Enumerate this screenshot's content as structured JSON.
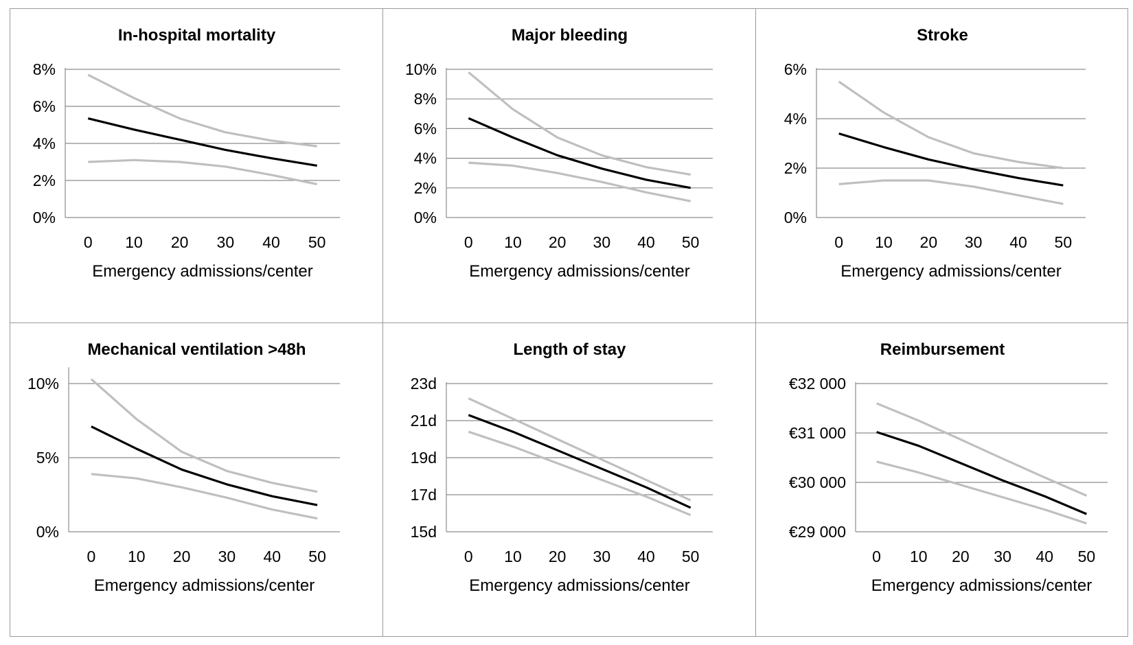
{
  "chart_data": [
    {
      "type": "line",
      "title": "In-hospital mortality",
      "xlabel": "Emergency admissions/center",
      "ylabel": "",
      "categories": [
        0,
        10,
        20,
        30,
        40,
        50
      ],
      "ylim": [
        0,
        8
      ],
      "yticks": [
        "0%",
        "2%",
        "4%",
        "6%",
        "8%"
      ],
      "ytick_values": [
        0,
        2,
        4,
        6,
        8
      ],
      "grid": true,
      "series": [
        {
          "role": "upper",
          "color": "#bfbfbf",
          "values": [
            7.7,
            6.45,
            5.35,
            4.6,
            4.15,
            3.85
          ]
        },
        {
          "role": "estimate",
          "color": "#000000",
          "values": [
            5.35,
            4.75,
            4.2,
            3.65,
            3.2,
            2.8
          ]
        },
        {
          "role": "lower",
          "color": "#bfbfbf",
          "values": [
            3.0,
            3.1,
            3.0,
            2.75,
            2.3,
            1.8
          ]
        }
      ]
    },
    {
      "type": "line",
      "title": "Major bleeding",
      "xlabel": "Emergency admissions/center",
      "ylabel": "",
      "categories": [
        0,
        10,
        20,
        30,
        40,
        50
      ],
      "ylim": [
        0,
        10
      ],
      "yticks": [
        "0%",
        "2%",
        "4%",
        "6%",
        "8%",
        "10%"
      ],
      "ytick_values": [
        0,
        2,
        4,
        6,
        8,
        10
      ],
      "grid": true,
      "series": [
        {
          "role": "upper",
          "color": "#bfbfbf",
          "values": [
            9.8,
            7.3,
            5.4,
            4.2,
            3.4,
            2.9
          ]
        },
        {
          "role": "estimate",
          "color": "#000000",
          "values": [
            6.7,
            5.4,
            4.2,
            3.3,
            2.55,
            2.0
          ]
        },
        {
          "role": "lower",
          "color": "#bfbfbf",
          "values": [
            3.7,
            3.5,
            3.0,
            2.4,
            1.7,
            1.1
          ]
        }
      ]
    },
    {
      "type": "line",
      "title": "Stroke",
      "xlabel": "Emergency admissions/center",
      "ylabel": "",
      "categories": [
        0,
        10,
        20,
        30,
        40,
        50
      ],
      "ylim": [
        0,
        6
      ],
      "yticks": [
        "0%",
        "2%",
        "4%",
        "6%"
      ],
      "ytick_values": [
        0,
        2,
        4,
        6
      ],
      "grid": true,
      "series": [
        {
          "role": "upper",
          "color": "#bfbfbf",
          "values": [
            5.5,
            4.25,
            3.25,
            2.6,
            2.25,
            2.0
          ]
        },
        {
          "role": "estimate",
          "color": "#000000",
          "values": [
            3.4,
            2.85,
            2.35,
            1.95,
            1.6,
            1.3
          ]
        },
        {
          "role": "lower",
          "color": "#bfbfbf",
          "values": [
            1.35,
            1.5,
            1.5,
            1.25,
            0.9,
            0.55
          ]
        }
      ]
    },
    {
      "type": "line",
      "title": "Mechanical ventilation >48h",
      "xlabel": "Emergency admissions/center",
      "ylabel": "",
      "categories": [
        0,
        10,
        20,
        30,
        40,
        50
      ],
      "ylim": [
        0,
        11
      ],
      "yticks": [
        "0%",
        "5%",
        "10%"
      ],
      "ytick_values": [
        0,
        5,
        10
      ],
      "grid": true,
      "series": [
        {
          "role": "upper",
          "color": "#bfbfbf",
          "values": [
            10.3,
            7.6,
            5.4,
            4.1,
            3.3,
            2.7
          ]
        },
        {
          "role": "estimate",
          "color": "#000000",
          "values": [
            7.1,
            5.6,
            4.2,
            3.2,
            2.4,
            1.8
          ]
        },
        {
          "role": "lower",
          "color": "#bfbfbf",
          "values": [
            3.9,
            3.6,
            3.0,
            2.3,
            1.5,
            0.9
          ]
        }
      ]
    },
    {
      "type": "line",
      "title": "Length of stay",
      "xlabel": "Emergency admissions/center",
      "ylabel": "",
      "categories": [
        0,
        10,
        20,
        30,
        40,
        50
      ],
      "ylim": [
        15,
        23
      ],
      "yticks": [
        "15d",
        "17d",
        "19d",
        "21d",
        "23d"
      ],
      "ytick_values": [
        15,
        17,
        19,
        21,
        23
      ],
      "grid": true,
      "series": [
        {
          "role": "upper",
          "color": "#bfbfbf",
          "values": [
            22.2,
            21.1,
            20.0,
            18.9,
            17.8,
            16.7
          ]
        },
        {
          "role": "estimate",
          "color": "#000000",
          "values": [
            21.3,
            20.4,
            19.4,
            18.4,
            17.4,
            16.3
          ]
        },
        {
          "role": "lower",
          "color": "#bfbfbf",
          "values": [
            20.4,
            19.6,
            18.7,
            17.8,
            16.9,
            15.9
          ]
        }
      ]
    },
    {
      "type": "line",
      "title": "Reimbursement",
      "xlabel": "Emergency admissions/center",
      "ylabel": "",
      "categories": [
        0,
        10,
        20,
        30,
        40,
        50
      ],
      "ylim": [
        29000,
        32000
      ],
      "yticks": [
        "€29 000",
        "€30 000",
        "€31 000",
        "€32 000"
      ],
      "ytick_values": [
        29000,
        30000,
        31000,
        32000
      ],
      "grid": true,
      "series": [
        {
          "role": "upper",
          "color": "#bfbfbf",
          "values": [
            31600,
            31250,
            30870,
            30480,
            30100,
            29730
          ]
        },
        {
          "role": "estimate",
          "color": "#000000",
          "values": [
            31020,
            30740,
            30390,
            30040,
            29720,
            29360
          ]
        },
        {
          "role": "lower",
          "color": "#bfbfbf",
          "values": [
            30420,
            30200,
            29950,
            29700,
            29450,
            29170
          ]
        }
      ]
    }
  ]
}
